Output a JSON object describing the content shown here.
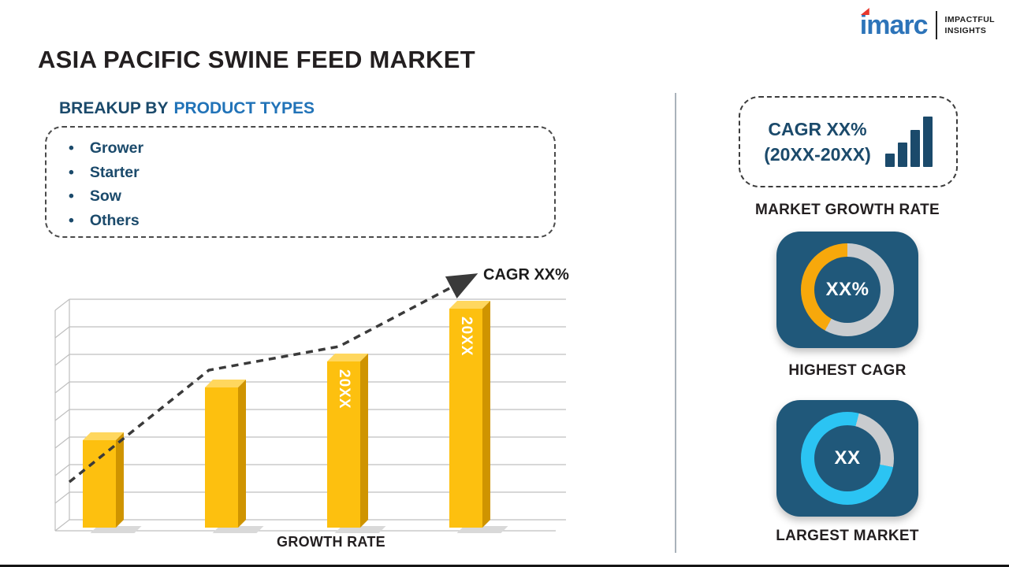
{
  "logo": {
    "brand": "imarc",
    "tagline_line1": "IMPACTFUL",
    "tagline_line2": "INSIGHTS"
  },
  "page_title": "ASIA PACIFIC SWINE FEED MARKET",
  "breakup": {
    "heading_prefix": "BREAKUP BY",
    "heading_accent": "PRODUCT TYPES",
    "items": [
      "Grower",
      "Starter",
      "Sow",
      "Others"
    ]
  },
  "chart_data": [
    {
      "id": "growth_bar_chart",
      "type": "bar",
      "categories": [
        "",
        "",
        "20XX",
        "20XX"
      ],
      "values": [
        40,
        64,
        76,
        100
      ],
      "ymax": 100,
      "ylim": [
        0,
        100
      ],
      "xlabel": "GROWTH RATE",
      "ylabel": "",
      "title": "",
      "grid": true,
      "bar_color": "#fdc00f",
      "trend_annotation": "CAGR XX%",
      "trend_style": "dashed-arrow-up"
    },
    {
      "id": "highest_cagr_donut",
      "type": "pie",
      "center_label": "XX%",
      "caption": "HIGHEST CAGR",
      "segments": [
        {
          "color": "#c9cccf",
          "from": 0,
          "to": 0.58
        },
        {
          "color": "#f7a80b",
          "from": 0.58,
          "to": 1
        }
      ]
    },
    {
      "id": "largest_market_donut",
      "type": "pie",
      "center_label": "XX",
      "caption": "LARGEST MARKET",
      "segments": [
        {
          "color": "#2bc4f3",
          "from": 0,
          "to": 0.04
        },
        {
          "color": "#c9cccf",
          "from": 0.04,
          "to": 0.28
        },
        {
          "color": "#2bc4f3",
          "from": 0.28,
          "to": 1
        }
      ]
    }
  ],
  "right_panel": {
    "cagr_card": {
      "line1": "CAGR XX%",
      "line2": "(20XX-20XX)",
      "icon": "bar-chart-icon",
      "label": "MARKET GROWTH RATE"
    }
  },
  "palette": {
    "title_text": "#231f20",
    "navy_text": "#1b4a6b",
    "blue_accent": "#2173b8",
    "tile_bg": "#20587a",
    "gold": "#fdc00f",
    "gold_dark": "#cf9400",
    "gold_light": "#ffd75e",
    "cyan": "#2bc4f3",
    "ring_track": "#c9cccf",
    "logo_blue": "#2d74b9",
    "logo_red": "#e8392f",
    "divider": "#a9b2ba"
  }
}
